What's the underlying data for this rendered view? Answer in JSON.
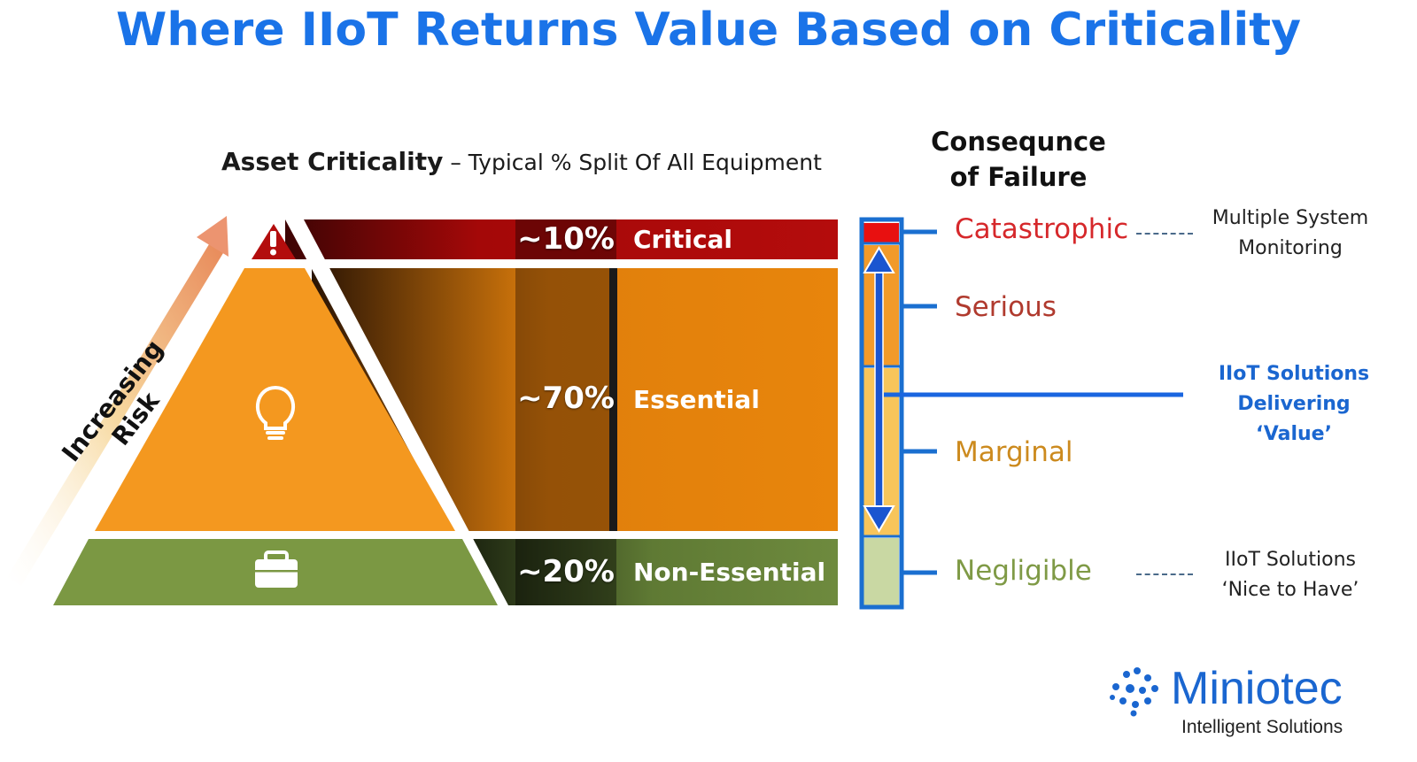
{
  "title": "Where IIoT Returns Value Based on Criticality",
  "subtitle": {
    "bold": "Asset Criticality",
    "rest": " – Typical % Split Of All Equipment"
  },
  "risk_axis_label": "Increasing Risk",
  "tiers": [
    {
      "percent": "~10%",
      "label": "Critical",
      "icon": "warning-icon"
    },
    {
      "percent": "~70%",
      "label": "Essential",
      "icon": "lightbulb-icon"
    },
    {
      "percent": "~20%",
      "label": "Non-Essential",
      "icon": "briefcase-icon"
    }
  ],
  "consequence": {
    "heading_line1": "Consequnce",
    "heading_line2": "of Failure",
    "levels": [
      {
        "label": "Catastrophic",
        "color": "#d6282b"
      },
      {
        "label": "Serious",
        "color": "#b03a2e"
      },
      {
        "label": "Marginal",
        "color": "#cc8a1e"
      },
      {
        "label": "Negligible",
        "color": "#7f9a46"
      }
    ]
  },
  "notes": {
    "catastrophic_line1": "Multiple System",
    "catastrophic_line2": "Monitoring",
    "value_line1": "IIoT Solutions",
    "value_line2": "Delivering ‘Value’",
    "negligible_line1": "IIoT Solutions",
    "negligible_line2": "‘Nice to Have’"
  },
  "logo": {
    "name": "Miniotec",
    "tagline": "Intelligent Solutions"
  },
  "colors": {
    "title_blue": "#1a73e8",
    "critical_red": "#b00a0a",
    "essential_orange": "#e8850c",
    "nonessential_green": "#6e8a3e",
    "arrow_blue": "#1a66e0"
  }
}
